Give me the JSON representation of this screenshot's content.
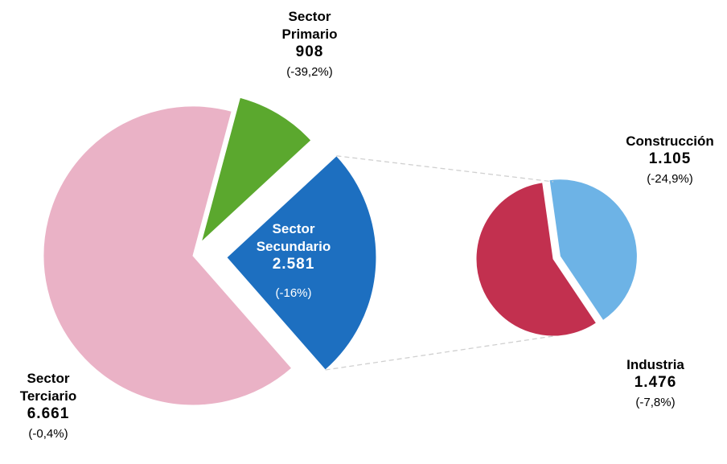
{
  "chart_data": [
    {
      "type": "pie",
      "categories": [
        "Sector Primario",
        "Sector Secundario",
        "Sector Terciario"
      ],
      "values": [
        908,
        2581,
        6661
      ],
      "value_labels": [
        "908",
        "2.581",
        "6.661"
      ],
      "change_labels": [
        "(-39,2%)",
        "(-16%)",
        "(-0,4%)"
      ],
      "colors": [
        "#5ba82e",
        "#1d6fc0",
        "#eab2c6"
      ]
    },
    {
      "type": "pie",
      "categories": [
        "Construcción",
        "Industria"
      ],
      "values": [
        1105,
        1476
      ],
      "value_labels": [
        "1.105",
        "1.476"
      ],
      "change_labels": [
        "(-24,9%)",
        "(-7,8%)"
      ],
      "colors": [
        "#6db3e6",
        "#c2304f"
      ]
    }
  ]
}
